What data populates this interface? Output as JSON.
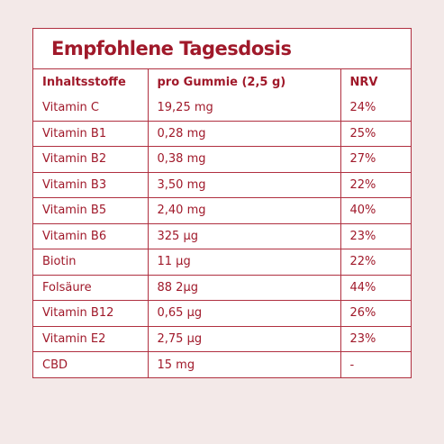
{
  "title": "Empfohlene Tagesdosis",
  "headers": [
    "Inhaltsstoffe",
    "pro Gummie (2,5 g)",
    "NRV"
  ],
  "rows": [
    [
      "Vitamin C",
      "19,25 mg",
      "24%"
    ],
    [
      "Vitamin B1",
      "0,28 mg",
      "25%"
    ],
    [
      "Vitamin B2",
      "0,38 mg",
      "27%"
    ],
    [
      "Vitamin B3",
      "3,50 mg",
      "22%"
    ],
    [
      "Vitamin B5",
      "2,40 mg",
      "40%"
    ],
    [
      "Vitamin B6",
      "325 µg",
      "23%"
    ],
    [
      "Biotin",
      "11 µg",
      "22%"
    ],
    [
      "Folsäure",
      "88 2µg",
      "44%"
    ],
    [
      "Vitamin B12",
      "0,65 µg",
      "26%"
    ],
    [
      "Vitamin E2",
      "2,75 µg",
      "23%"
    ],
    [
      "CBD",
      "15 mg",
      "-"
    ]
  ],
  "colors": {
    "background": "#f3e9e8",
    "card": "#ffffff",
    "accent": "#a0192a",
    "border": "#b03040"
  }
}
